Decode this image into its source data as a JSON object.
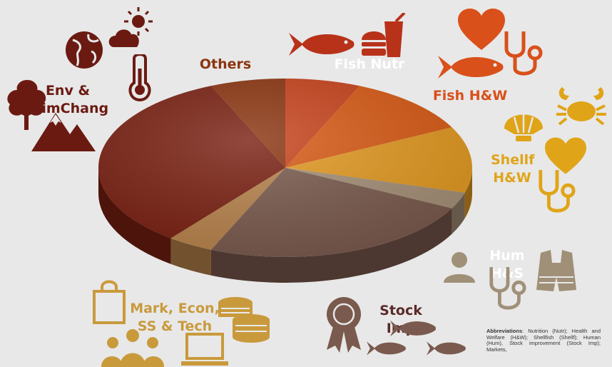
{
  "chart_data": {
    "type": "pie",
    "style": "3d",
    "title": "",
    "slices": [
      {
        "label": "Fish Nutr",
        "value": 6.5,
        "color": "#c8431c"
      },
      {
        "label": "Fish H&W",
        "value": 11,
        "color": "#d95b16"
      },
      {
        "label": "Shellf H&W",
        "value": 12,
        "color": "#e39a22"
      },
      {
        "label": "Hum H&S",
        "value": 3,
        "color": "#a59078"
      },
      {
        "label": "Stock Imp",
        "value": 24,
        "color": "#7a5a4e"
      },
      {
        "label": "Mark, Econ, SS & Tech",
        "value": 4,
        "color": "#b8834c"
      },
      {
        "label": "Env & ClimChang",
        "value": 33,
        "color": "#7a2012"
      },
      {
        "label": "Others",
        "value": 6.5,
        "color": "#8b3510"
      }
    ]
  },
  "labels": {
    "others": "Others",
    "fish_nutr": "Fish Nutr",
    "fish_hw": "Fish H&W",
    "shellf_hw_line1": "Shellf",
    "shellf_hw_line2": "H&W",
    "hum_hs": "Hum H&S",
    "stock_imp": "Stock Imp",
    "mark_line1": "Mark, Econ,",
    "mark_line2": "SS & Tech",
    "env_line1": "Env &",
    "env_line2": "ClimChang"
  },
  "label_colors": {
    "others": "#8b3510",
    "fish_nutr": "#ffffff",
    "fish_hw": "#d9501a",
    "shellf_hw": "#e0a418",
    "hum_hs": "#ffffff",
    "stock_imp": "#5a2a2a",
    "mark": "#c99a3c",
    "env": "#6b1a12"
  },
  "icons": {
    "fish_nutr": [
      "fish-icon",
      "burger-icon"
    ],
    "fish_hw": [
      "heart-icon",
      "fish-icon",
      "stethoscope-icon"
    ],
    "shellf_hw": [
      "crab-icon",
      "shell-icon",
      "heart-icon",
      "stethoscope-icon"
    ],
    "hum_hs": [
      "person-icon",
      "stethoscope-icon",
      "life-vest-icon"
    ],
    "stock_imp": [
      "award-ribbon-icon",
      "fish-icon"
    ],
    "mark": [
      "shopping-bag-icon",
      "coins-icon",
      "people-icon",
      "laptop-icon"
    ],
    "env": [
      "globe-icon",
      "weather-icon",
      "thermometer-icon",
      "tree-icon",
      "mountain-icon"
    ]
  },
  "abbreviations": {
    "heading": "Abbreviations",
    "text": ": Nutrition (Nutr); Health and Welfare (H&W); Shellfish (Shellf); Human (Hum), Stock improvement (Stock Imp); Markets,"
  }
}
